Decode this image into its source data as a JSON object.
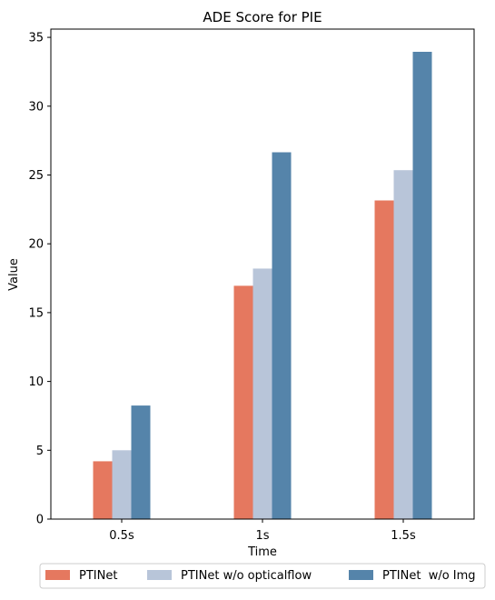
{
  "chart_data": {
    "type": "bar",
    "title": "ADE Score for PIE",
    "xlabel": "Time",
    "ylabel": "Value",
    "categories": [
      "0.5s",
      "1s",
      "1.5s"
    ],
    "series": [
      {
        "name": "PTINet",
        "values": [
          4.2,
          16.95,
          23.15
        ],
        "color": "#E5785F"
      },
      {
        "name": "PTINet w/o opticalflow",
        "values": [
          5.0,
          18.2,
          25.35
        ],
        "color": "#B8C5D9"
      },
      {
        "name": "PTINet  w/o Img",
        "values": [
          8.25,
          26.65,
          33.95
        ],
        "color": "#5584AA"
      }
    ],
    "ylim": [
      0,
      35.6
    ],
    "yticks": [
      "0",
      "5",
      "10",
      "15",
      "20",
      "25",
      "30",
      "35"
    ],
    "grid": false,
    "legend": "bottom-center"
  }
}
